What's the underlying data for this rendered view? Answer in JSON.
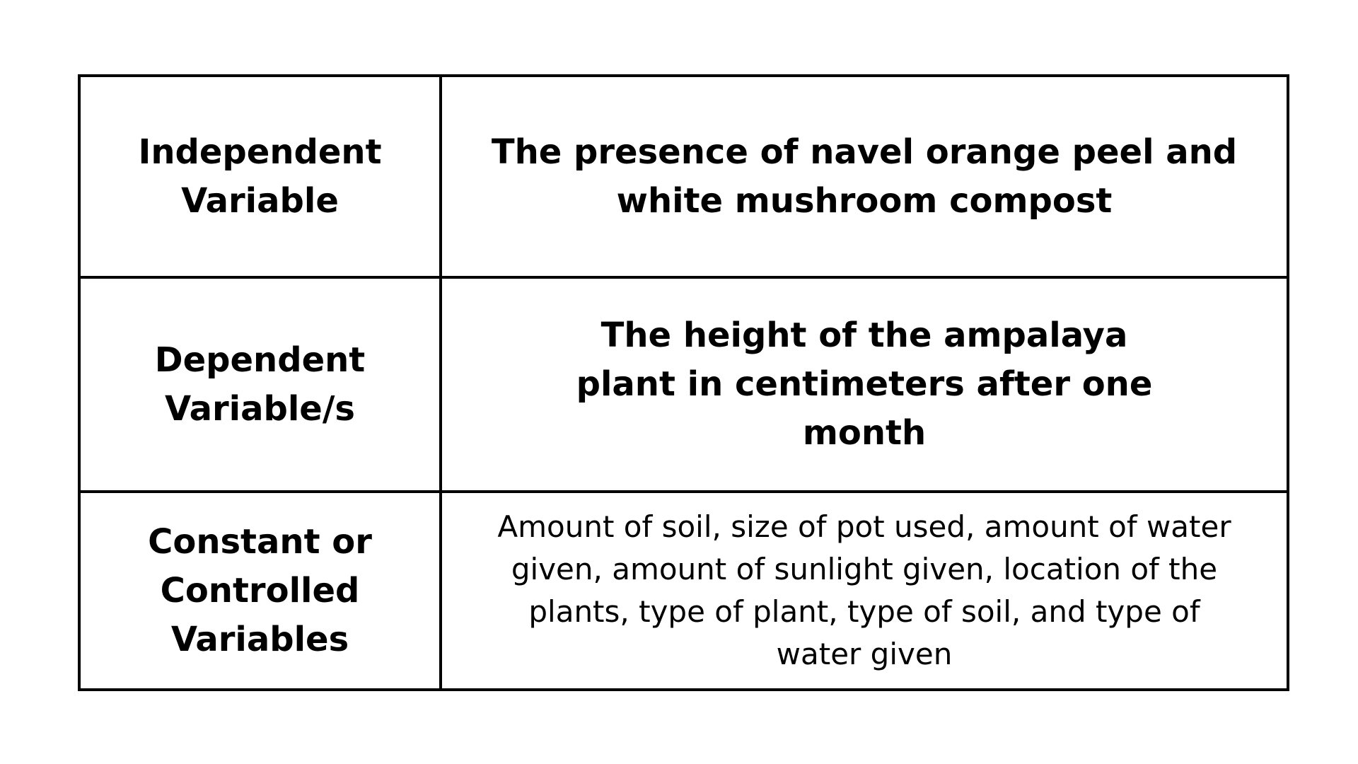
{
  "table": {
    "rows": [
      {
        "label": "Independent Variable",
        "value": "The presence of navel orange peel and white mushroom compost"
      },
      {
        "label": "Dependent Variable/s",
        "value": "The height of the ampalaya plant in centimeters after one month"
      },
      {
        "label": "Constant or Controlled Variables",
        "value": "Amount of soil, size of pot used, amount of water given, amount of sunlight given, location of the plants, type of plant, type of soil, and type of water given"
      }
    ]
  }
}
